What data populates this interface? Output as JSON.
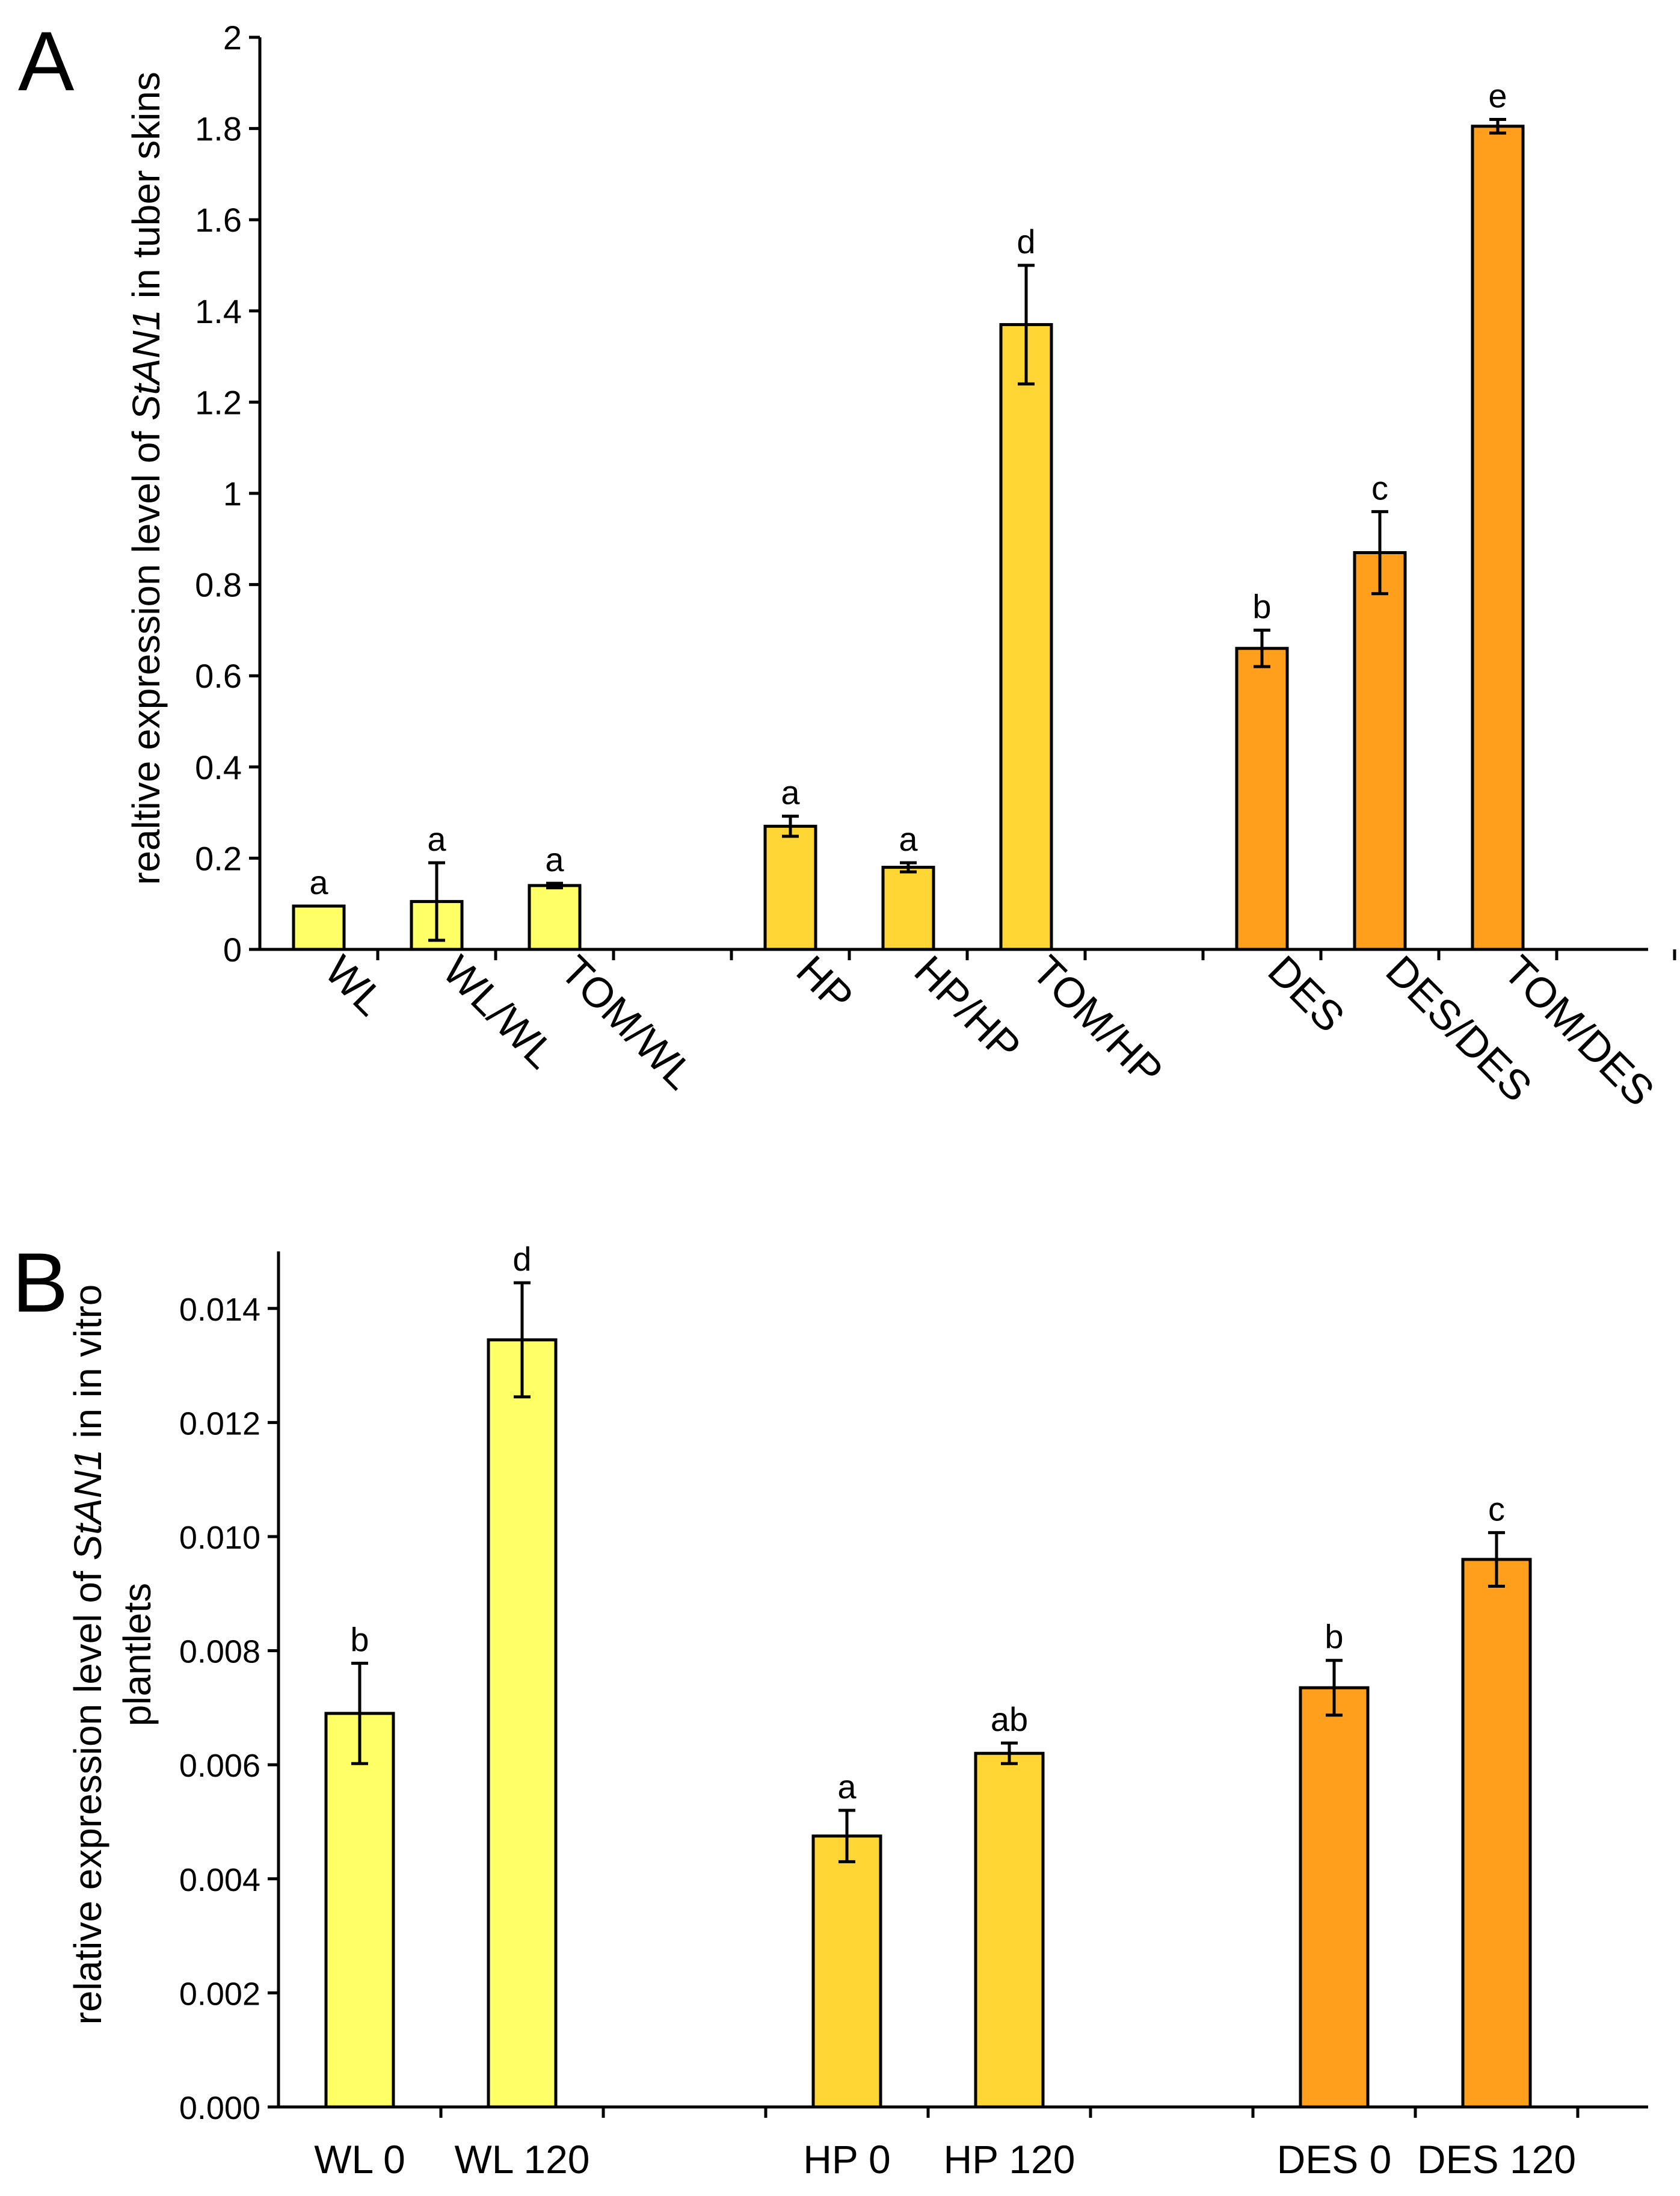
{
  "chart_data": [
    {
      "panel_label": "A",
      "type": "bar",
      "ylabel_parts": [
        "realtive expression level of ",
        "StAN1",
        " in tuber skins"
      ],
      "ylim": [
        0,
        2
      ],
      "yticks": [
        0,
        0.2,
        0.4,
        0.6,
        0.8,
        1,
        1.2,
        1.4,
        1.6,
        1.8,
        2
      ],
      "ytick_labels": [
        "0",
        "0.2",
        "0.4",
        "0.6",
        "0.8",
        "1",
        "1.2",
        "1.4",
        "1.6",
        "1.8",
        "2"
      ],
      "categories": [
        "WL",
        "WL/WL",
        "TOM/WL",
        "HP",
        "HP/HP",
        "TOM/HP",
        "DES",
        "DES/DES",
        "TOM/DES"
      ],
      "values": [
        0.095,
        0.105,
        0.14,
        0.27,
        0.18,
        1.37,
        0.66,
        0.87,
        1.805
      ],
      "errors": [
        0.0,
        0.085,
        0.005,
        0.022,
        0.01,
        0.13,
        0.04,
        0.09,
        0.015
      ],
      "significance_letters": [
        "a",
        "a",
        "a",
        "a",
        "a",
        "d",
        "b",
        "c",
        "e"
      ],
      "bar_colors": [
        "#ffff66",
        "#ffff66",
        "#ffff66",
        "#ffd633",
        "#ffd633",
        "#ffd633",
        "#ff9f1c",
        "#ff9f1c",
        "#ff9f1c"
      ],
      "legend": "none",
      "grid": false
    },
    {
      "panel_label": "B",
      "type": "bar",
      "ylabel_parts": [
        "relative expression level of ",
        "StAN1",
        " in in vitro"
      ],
      "ylabel_line2": "plantlets",
      "ylim": [
        0,
        0.015
      ],
      "yticks": [
        0,
        0.002,
        0.004,
        0.006,
        0.008,
        0.01,
        0.012,
        0.014
      ],
      "ytick_labels": [
        "0.000",
        "0.002",
        "0.004",
        "0.006",
        "0.008",
        "0.010",
        "0.012",
        "0.014"
      ],
      "categories": [
        "WL 0",
        "WL 120",
        "HP 0",
        "HP 120",
        "DES 0",
        "DES 120"
      ],
      "values": [
        0.0069,
        0.01345,
        0.00475,
        0.0062,
        0.00735,
        0.0096
      ],
      "errors": [
        0.00088,
        0.001,
        0.00045,
        0.00018,
        0.00048,
        0.00047
      ],
      "significance_letters": [
        "b",
        "d",
        "a",
        "ab",
        "b",
        "c"
      ],
      "bar_colors": [
        "#ffff66",
        "#ffff66",
        "#ffd633",
        "#ffd633",
        "#ff9f1c",
        "#ff9f1c"
      ],
      "legend": "none",
      "grid": false
    }
  ]
}
